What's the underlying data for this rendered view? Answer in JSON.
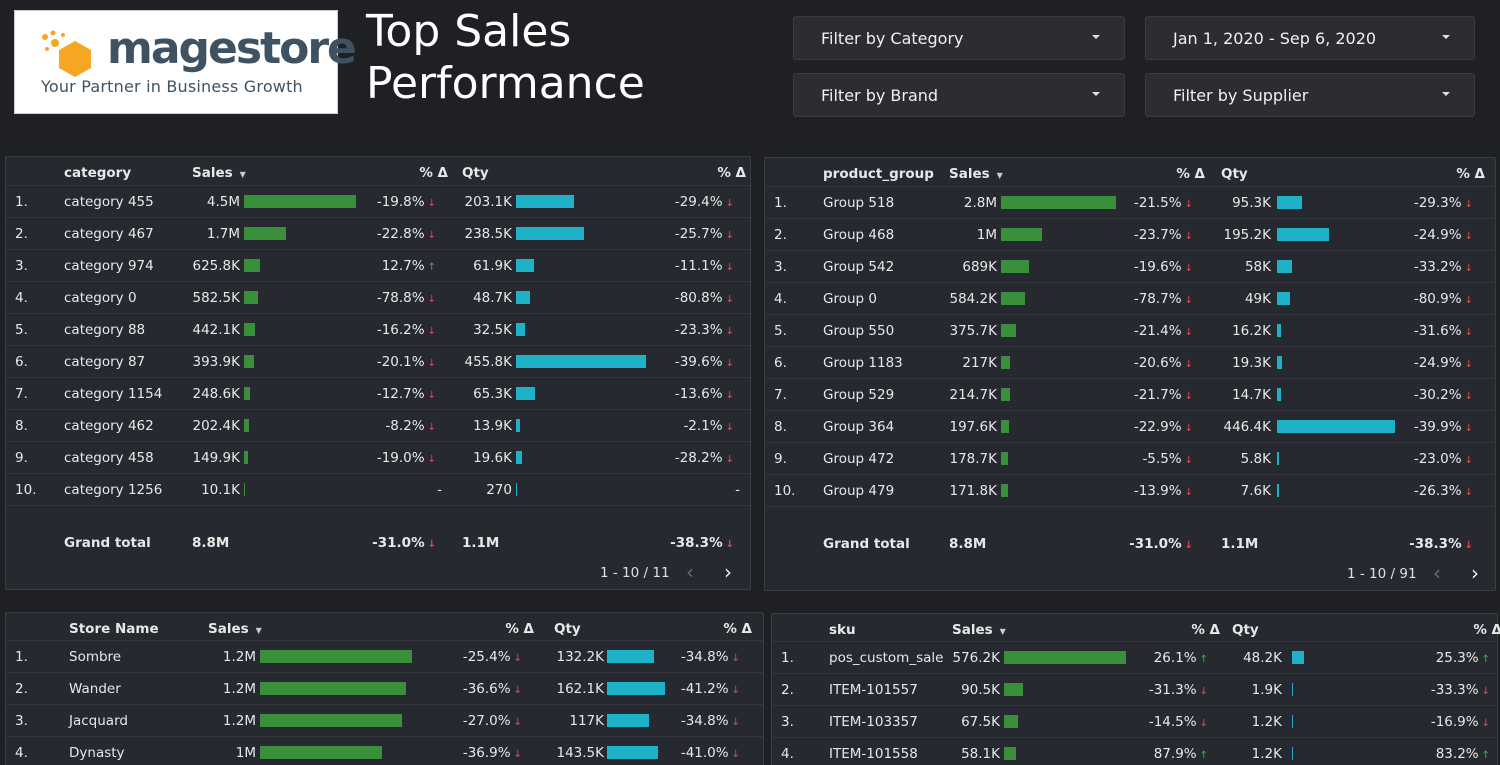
{
  "logo": {
    "name": "magestore",
    "tagline": "Your Partner in Business Growth"
  },
  "title": "Top Sales Performance",
  "filters": {
    "category": "Filter by Category",
    "date": "Jan 1, 2020 - Sep 6, 2020",
    "brand": "Filter by Brand",
    "supplier": "Filter by Supplier"
  },
  "colors": {
    "sales_bar": "#3a8f3a",
    "qty_bar": "#1eb1c7",
    "down": "#e24c4c",
    "up": "#3fb34f"
  },
  "tables": {
    "category": {
      "headers": {
        "name": "category",
        "sales": "Sales",
        "pct1": "% Δ",
        "qty": "Qty",
        "pct2": "% Δ"
      },
      "rows": [
        {
          "n": "1.",
          "name": "category 455",
          "sales": "4.5M",
          "sv": 4.5,
          "p1": "-19.8%",
          "d1": "down",
          "qty": "203.1K",
          "qv": 203.1,
          "p2": "-29.4%",
          "d2": "down"
        },
        {
          "n": "2.",
          "name": "category 467",
          "sales": "1.7M",
          "sv": 1.7,
          "p1": "-22.8%",
          "d1": "down",
          "qty": "238.5K",
          "qv": 238.5,
          "p2": "-25.7%",
          "d2": "down"
        },
        {
          "n": "3.",
          "name": "category 974",
          "sales": "625.8K",
          "sv": 0.6258,
          "p1": "12.7%",
          "d1": "up",
          "qty": "61.9K",
          "qv": 61.9,
          "p2": "-11.1%",
          "d2": "down"
        },
        {
          "n": "4.",
          "name": "category 0",
          "sales": "582.5K",
          "sv": 0.5825,
          "p1": "-78.8%",
          "d1": "down",
          "qty": "48.7K",
          "qv": 48.7,
          "p2": "-80.8%",
          "d2": "down"
        },
        {
          "n": "5.",
          "name": "category 88",
          "sales": "442.1K",
          "sv": 0.4421,
          "p1": "-16.2%",
          "d1": "down",
          "qty": "32.5K",
          "qv": 32.5,
          "p2": "-23.3%",
          "d2": "down"
        },
        {
          "n": "6.",
          "name": "category 87",
          "sales": "393.9K",
          "sv": 0.3939,
          "p1": "-20.1%",
          "d1": "down",
          "qty": "455.8K",
          "qv": 455.8,
          "p2": "-39.6%",
          "d2": "down"
        },
        {
          "n": "7.",
          "name": "category 1154",
          "sales": "248.6K",
          "sv": 0.2486,
          "p1": "-12.7%",
          "d1": "down",
          "qty": "65.3K",
          "qv": 65.3,
          "p2": "-13.6%",
          "d2": "down"
        },
        {
          "n": "8.",
          "name": "category 462",
          "sales": "202.4K",
          "sv": 0.2024,
          "p1": "-8.2%",
          "d1": "down",
          "qty": "13.9K",
          "qv": 13.9,
          "p2": "-2.1%",
          "d2": "down"
        },
        {
          "n": "9.",
          "name": "category 458",
          "sales": "149.9K",
          "sv": 0.1499,
          "p1": "-19.0%",
          "d1": "down",
          "qty": "19.6K",
          "qv": 19.6,
          "p2": "-28.2%",
          "d2": "down"
        },
        {
          "n": "10.",
          "name": "category 1256",
          "sales": "10.1K",
          "sv": 0.0101,
          "p1": "-",
          "d1": "",
          "qty": "270",
          "qv": 0.27,
          "p2": "-",
          "d2": ""
        }
      ],
      "total": {
        "label": "Grand total",
        "sales": "8.8M",
        "p1": "-31.0%",
        "qty": "1.1M",
        "p2": "-38.3%"
      },
      "pager": "1 - 10 / 11"
    },
    "product_group": {
      "headers": {
        "name": "product_group",
        "sales": "Sales",
        "pct1": "% Δ",
        "qty": "Qty",
        "pct2": "% Δ"
      },
      "rows": [
        {
          "n": "1.",
          "name": "Group 518",
          "sales": "2.8M",
          "sv": 2.8,
          "p1": "-21.5%",
          "d1": "down",
          "qty": "95.3K",
          "qv": 95.3,
          "p2": "-29.3%",
          "d2": "down"
        },
        {
          "n": "2.",
          "name": "Group 468",
          "sales": "1M",
          "sv": 1.0,
          "p1": "-23.7%",
          "d1": "down",
          "qty": "195.2K",
          "qv": 195.2,
          "p2": "-24.9%",
          "d2": "down"
        },
        {
          "n": "3.",
          "name": "Group 542",
          "sales": "689K",
          "sv": 0.689,
          "p1": "-19.6%",
          "d1": "down",
          "qty": "58K",
          "qv": 58,
          "p2": "-33.2%",
          "d2": "down"
        },
        {
          "n": "4.",
          "name": "Group 0",
          "sales": "584.2K",
          "sv": 0.5842,
          "p1": "-78.7%",
          "d1": "down",
          "qty": "49K",
          "qv": 49,
          "p2": "-80.9%",
          "d2": "down"
        },
        {
          "n": "5.",
          "name": "Group 550",
          "sales": "375.7K",
          "sv": 0.3757,
          "p1": "-21.4%",
          "d1": "down",
          "qty": "16.2K",
          "qv": 16.2,
          "p2": "-31.6%",
          "d2": "down"
        },
        {
          "n": "6.",
          "name": "Group 1183",
          "sales": "217K",
          "sv": 0.217,
          "p1": "-20.6%",
          "d1": "down",
          "qty": "19.3K",
          "qv": 19.3,
          "p2": "-24.9%",
          "d2": "down"
        },
        {
          "n": "7.",
          "name": "Group 529",
          "sales": "214.7K",
          "sv": 0.2147,
          "p1": "-21.7%",
          "d1": "down",
          "qty": "14.7K",
          "qv": 14.7,
          "p2": "-30.2%",
          "d2": "down"
        },
        {
          "n": "8.",
          "name": "Group 364",
          "sales": "197.6K",
          "sv": 0.1976,
          "p1": "-22.9%",
          "d1": "down",
          "qty": "446.4K",
          "qv": 446.4,
          "p2": "-39.9%",
          "d2": "down"
        },
        {
          "n": "9.",
          "name": "Group 472",
          "sales": "178.7K",
          "sv": 0.1787,
          "p1": "-5.5%",
          "d1": "down",
          "qty": "5.8K",
          "qv": 5.8,
          "p2": "-23.0%",
          "d2": "down"
        },
        {
          "n": "10.",
          "name": "Group 479",
          "sales": "171.8K",
          "sv": 0.1718,
          "p1": "-13.9%",
          "d1": "down",
          "qty": "7.6K",
          "qv": 7.6,
          "p2": "-26.3%",
          "d2": "down"
        }
      ],
      "total": {
        "label": "Grand total",
        "sales": "8.8M",
        "p1": "-31.0%",
        "qty": "1.1M",
        "p2": "-38.3%"
      },
      "pager": "1 - 10 / 91"
    },
    "store": {
      "headers": {
        "name": "Store Name",
        "sales": "Sales",
        "pct1": "% Δ",
        "qty": "Qty",
        "pct2": "% Δ"
      },
      "rows": [
        {
          "n": "1.",
          "name": "Sombre",
          "sales": "1.2M",
          "sv": 1.25,
          "p1": "-25.4%",
          "d1": "down",
          "qty": "132.2K",
          "qv": 132.2,
          "p2": "-34.8%",
          "d2": "down"
        },
        {
          "n": "2.",
          "name": "Wander",
          "sales": "1.2M",
          "sv": 1.2,
          "p1": "-36.6%",
          "d1": "down",
          "qty": "162.1K",
          "qv": 162.1,
          "p2": "-41.2%",
          "d2": "down"
        },
        {
          "n": "3.",
          "name": "Jacquard",
          "sales": "1.2M",
          "sv": 1.17,
          "p1": "-27.0%",
          "d1": "down",
          "qty": "117K",
          "qv": 117,
          "p2": "-34.8%",
          "d2": "down"
        },
        {
          "n": "4.",
          "name": "Dynasty",
          "sales": "1M",
          "sv": 1.0,
          "p1": "-36.9%",
          "d1": "down",
          "qty": "143.5K",
          "qv": 143.5,
          "p2": "-41.0%",
          "d2": "down"
        }
      ]
    },
    "sku": {
      "headers": {
        "name": "sku",
        "sales": "Sales",
        "pct1": "% Δ",
        "qty": "Qty",
        "pct2": "% Δ"
      },
      "rows": [
        {
          "n": "1.",
          "name": "pos_custom_sale",
          "sales": "576.2K",
          "sv": 576.2,
          "p1": "26.1%",
          "d1": "up",
          "qty": "48.2K",
          "qv": 48.2,
          "p2": "25.3%",
          "d2": "up"
        },
        {
          "n": "2.",
          "name": "ITEM-101557",
          "sales": "90.5K",
          "sv": 90.5,
          "p1": "-31.3%",
          "d1": "down",
          "qty": "1.9K",
          "qv": 1.9,
          "p2": "-33.3%",
          "d2": "down"
        },
        {
          "n": "3.",
          "name": "ITEM-103357",
          "sales": "67.5K",
          "sv": 67.5,
          "p1": "-14.5%",
          "d1": "down",
          "qty": "1.2K",
          "qv": 1.2,
          "p2": "-16.9%",
          "d2": "down"
        },
        {
          "n": "4.",
          "name": "ITEM-101558",
          "sales": "58.1K",
          "sv": 58.1,
          "p1": "87.9%",
          "d1": "up",
          "qty": "1.2K",
          "qv": 1.2,
          "p2": "83.2%",
          "d2": "up"
        }
      ]
    }
  }
}
